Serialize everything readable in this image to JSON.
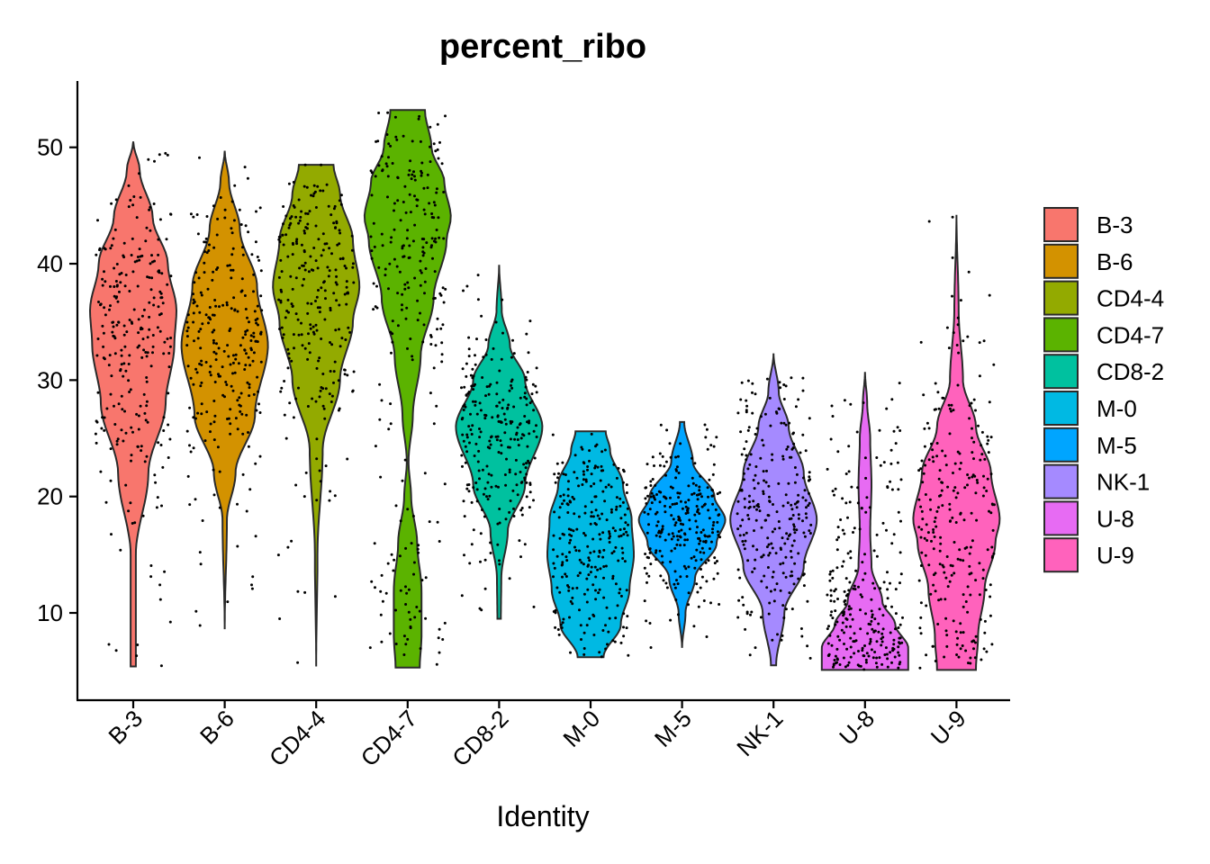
{
  "chart_data": {
    "type": "violin",
    "title": "percent_ribo",
    "xlabel": "Identity",
    "ylabel": "",
    "ylim": [
      2.5,
      55.7
    ],
    "yticks": [
      10,
      20,
      30,
      40,
      50
    ],
    "legend_position": "right",
    "jitter_points": true,
    "categories": [
      "B-3",
      "B-6",
      "CD4-4",
      "CD4-7",
      "CD8-2",
      "M-0",
      "M-5",
      "NK-1",
      "U-8",
      "U-9"
    ],
    "series": [
      {
        "name": "B-3",
        "color": "#F8766D",
        "min": 5.4,
        "max": 50.5,
        "peak": 36,
        "shape": [
          [
            5.4,
            0.06
          ],
          [
            15,
            0.06
          ],
          [
            22,
            0.35
          ],
          [
            28,
            0.75
          ],
          [
            33,
            0.95
          ],
          [
            36,
            1.0
          ],
          [
            40,
            0.8
          ],
          [
            44,
            0.45
          ],
          [
            48,
            0.15
          ],
          [
            50.5,
            0.0
          ]
        ]
      },
      {
        "name": "B-6",
        "color": "#D39200",
        "min": 8.6,
        "max": 49.7,
        "peak": 33,
        "shape": [
          [
            8.6,
            0.0
          ],
          [
            18,
            0.05
          ],
          [
            22,
            0.25
          ],
          [
            27,
            0.7
          ],
          [
            33,
            1.0
          ],
          [
            38,
            0.75
          ],
          [
            43,
            0.35
          ],
          [
            47,
            0.1
          ],
          [
            49.7,
            0.0
          ]
        ]
      },
      {
        "name": "CD4-4",
        "color": "#93AA00",
        "min": 5.4,
        "max": 48.5,
        "peak": 38,
        "shape": [
          [
            5.4,
            0.0
          ],
          [
            15,
            0.03
          ],
          [
            24,
            0.15
          ],
          [
            30,
            0.55
          ],
          [
            35,
            0.85
          ],
          [
            38,
            1.0
          ],
          [
            42,
            0.85
          ],
          [
            46,
            0.55
          ],
          [
            48.5,
            0.4
          ]
        ]
      },
      {
        "name": "CD4-7",
        "color": "#5BB300",
        "min": 5.3,
        "max": 53.2,
        "peak": 44,
        "shape": [
          [
            5.3,
            0.28
          ],
          [
            8,
            0.32
          ],
          [
            12,
            0.32
          ],
          [
            16,
            0.22
          ],
          [
            20,
            0.08
          ],
          [
            23,
            0.02
          ],
          [
            27,
            0.12
          ],
          [
            32,
            0.3
          ],
          [
            37,
            0.6
          ],
          [
            42,
            0.9
          ],
          [
            44,
            1.0
          ],
          [
            47,
            0.85
          ],
          [
            50,
            0.55
          ],
          [
            53.2,
            0.4
          ]
        ]
      },
      {
        "name": "CD8-2",
        "color": "#00C19F",
        "min": 9.5,
        "max": 39.9,
        "peak": 26,
        "shape": [
          [
            9.5,
            0.04
          ],
          [
            13,
            0.05
          ],
          [
            17,
            0.2
          ],
          [
            21,
            0.6
          ],
          [
            26,
            1.0
          ],
          [
            30,
            0.6
          ],
          [
            33,
            0.25
          ],
          [
            36,
            0.06
          ],
          [
            39.9,
            0.0
          ]
        ]
      },
      {
        "name": "M-0",
        "color": "#00B9E3",
        "min": 6.2,
        "max": 25.6,
        "peak": 15,
        "shape": [
          [
            6.2,
            0.3
          ],
          [
            9,
            0.7
          ],
          [
            12,
            0.9
          ],
          [
            15,
            1.0
          ],
          [
            18,
            0.95
          ],
          [
            21,
            0.75
          ],
          [
            24,
            0.45
          ],
          [
            25.6,
            0.35
          ]
        ]
      },
      {
        "name": "M-5",
        "color": "#00A5FF",
        "min": 7.0,
        "max": 26.4,
        "peak": 18,
        "shape": [
          [
            7.0,
            0.0
          ],
          [
            10,
            0.08
          ],
          [
            13,
            0.3
          ],
          [
            16,
            0.8
          ],
          [
            18,
            1.0
          ],
          [
            20,
            0.75
          ],
          [
            23,
            0.25
          ],
          [
            26.4,
            0.05
          ]
        ]
      },
      {
        "name": "NK-1",
        "color": "#A58AFF",
        "min": 5.5,
        "max": 32.3,
        "peak": 18,
        "shape": [
          [
            5.5,
            0.06
          ],
          [
            10,
            0.25
          ],
          [
            14,
            0.7
          ],
          [
            18,
            1.0
          ],
          [
            22,
            0.7
          ],
          [
            26,
            0.35
          ],
          [
            29,
            0.12
          ],
          [
            32.3,
            0.0
          ]
        ]
      },
      {
        "name": "U-8",
        "color": "#E76BF3",
        "min": 5.1,
        "max": 30.7,
        "peak": 7,
        "shape": [
          [
            5.1,
            1.0
          ],
          [
            7,
            1.0
          ],
          [
            9,
            0.7
          ],
          [
            11,
            0.4
          ],
          [
            14,
            0.15
          ],
          [
            17,
            0.12
          ],
          [
            21,
            0.15
          ],
          [
            25,
            0.12
          ],
          [
            28,
            0.05
          ],
          [
            30.7,
            0.0
          ]
        ]
      },
      {
        "name": "U-9",
        "color": "#FF62BC",
        "min": 5.1,
        "max": 44.2,
        "peak": 18,
        "shape": [
          [
            5.1,
            0.45
          ],
          [
            8,
            0.5
          ],
          [
            12,
            0.65
          ],
          [
            16,
            0.9
          ],
          [
            18,
            1.0
          ],
          [
            22,
            0.8
          ],
          [
            26,
            0.45
          ],
          [
            30,
            0.15
          ],
          [
            36,
            0.05
          ],
          [
            44.2,
            0.0
          ]
        ]
      }
    ]
  }
}
